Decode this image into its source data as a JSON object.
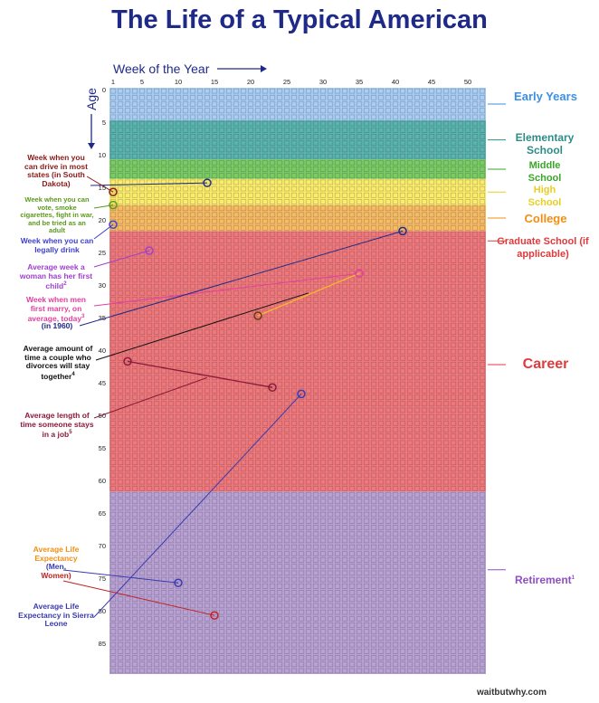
{
  "title": "The Life of a Typical American",
  "x_axis": {
    "label": "Week of the Year",
    "arrow": "⟶",
    "ticks": [
      "1",
      "5",
      "10",
      "15",
      "20",
      "25",
      "30",
      "35",
      "40",
      "45",
      "50"
    ]
  },
  "y_axis": {
    "label": "Age",
    "ticks": [
      "0",
      "5",
      "10",
      "15",
      "20",
      "25",
      "30",
      "35",
      "40",
      "45",
      "50",
      "55",
      "60",
      "65",
      "70",
      "75",
      "80",
      "85"
    ]
  },
  "chart_data": {
    "type": "heatmap",
    "weeks_per_year": 52,
    "years": 90,
    "phases": [
      {
        "name": "Early Years",
        "start_age": 0,
        "end_age": 5,
        "color": "#a9cdf3",
        "label_color": "#3b8fe6"
      },
      {
        "name": "Elementary School",
        "start_age": 5,
        "end_age": 11,
        "color": "#5ab4ae",
        "label_color": "#2e8c86"
      },
      {
        "name": "Middle School",
        "start_age": 11,
        "end_age": 14,
        "color": "#79cb63",
        "label_color": "#3aa62a"
      },
      {
        "name": "High School",
        "start_age": 14,
        "end_age": 18,
        "color": "#fbed6a",
        "label_color": "#e8cf1e"
      },
      {
        "name": "College",
        "start_age": 18,
        "end_age": 22,
        "color": "#f7bb62",
        "label_color": "#f08f12"
      },
      {
        "name": "Career",
        "start_age": 22,
        "end_age": 62,
        "color": "#f0787a",
        "label_color": "#e03a3c"
      },
      {
        "name": "Retirement",
        "start_age": 62,
        "end_age": 90,
        "color": "#b9a2d3",
        "label_color": "#8e4fc4"
      }
    ],
    "markers": [
      {
        "name": "Week when you can drive in most states (in South Dakota)",
        "week": 1,
        "age": 16.0,
        "color": "#8a1a1a"
      },
      {
        "name": "Week when you can vote, smoke cigarettes, fight in war, and be tried as an adult",
        "week": 1,
        "age": 18.0,
        "color": "#5a9a1a"
      },
      {
        "name": "Week when you can legally drink",
        "week": 1,
        "age": 21.0,
        "color": "#4040d0"
      },
      {
        "name": "Average week a woman has her first child",
        "week": 6,
        "age": 25.0,
        "color": "#a040d0"
      },
      {
        "name": "Week when men first marry, on average, today",
        "week": 35,
        "age": 28.5,
        "color": "#e040a0"
      },
      {
        "name": "(in 1960)",
        "week": 21,
        "age": 35.0,
        "color": "#6a3a10"
      },
      {
        "name": "Average amount of time a couple who divorces will stay together",
        "week": 41,
        "age": 22.0,
        "color": "#1f2a88"
      },
      {
        "name": "Average length of time someone stays in a job",
        "week": 3,
        "age": 42.0,
        "color": "#8a1a3a"
      },
      {
        "name": "Average length of time someone stays in a job (end)",
        "week": 23,
        "age": 46.0,
        "color": "#8a1a3a"
      },
      {
        "name": "Average Life Expectancy in Sierra Leone",
        "week": 27,
        "age": 47.0,
        "color": "#3a3ab0"
      },
      {
        "name": "Average Life Expectancy (Men)",
        "week": 10,
        "age": 76.0,
        "color": "#3a3ab0"
      },
      {
        "name": "Average Life Expectancy (Women)",
        "week": 15,
        "age": 81.0,
        "color": "#c02020"
      }
    ]
  },
  "phase_labels": {
    "early": "Early Years",
    "elementary": "Elementary School",
    "middle": "Middle School",
    "high": "High School",
    "college": "College",
    "grad": "Graduate School (if applicable)",
    "career": "Career",
    "retirement": "Retirement",
    "retirement_note": "1"
  },
  "annotations": {
    "drive": "Week when you can drive in most states (in South Dakota)",
    "vote": "Week when you can vote, smoke cigarettes, fight in war, and be tried as an adult",
    "drink": "Week when you can legally drink",
    "child": "Average week a woman has her first child",
    "child_note": "2",
    "marry": "Week when men first marry, on average, today",
    "marry_note": "3",
    "marry_1960": "(in 1960)",
    "divorce": "Average amount of time a couple who divorces will stay together",
    "divorce_note": "4",
    "job": "Average length of time someone stays in a job",
    "job_note": "5",
    "life_exp": "Average Life Expectancy (Men, Women)",
    "sierra": "Average Life Expectancy in Sierra Leone"
  },
  "credit": "waitbutwhy.com"
}
